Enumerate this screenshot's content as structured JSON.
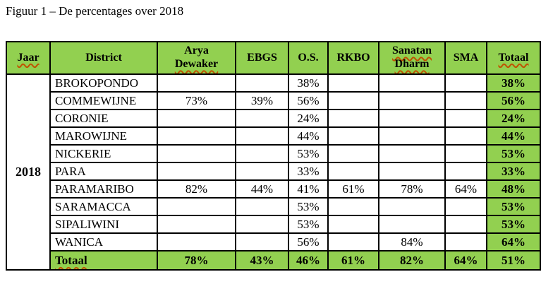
{
  "title": "Figuur 1 – De percentages over 2018",
  "colors": {
    "header_green": "#92d050",
    "grid_border": "#000000",
    "squiggle": "#bf5300",
    "text": "#000000",
    "background": "#ffffff"
  },
  "table": {
    "header": [
      {
        "lines": [
          {
            "text": "Jaar",
            "squiggle": true
          }
        ]
      },
      {
        "lines": [
          {
            "text": "District",
            "squiggle": false
          }
        ]
      },
      {
        "lines": [
          {
            "text": "Arya",
            "squiggle": false
          },
          {
            "text": "Dewaker",
            "squiggle": true
          }
        ]
      },
      {
        "lines": [
          {
            "text": "EBGS",
            "squiggle": false
          }
        ]
      },
      {
        "lines": [
          {
            "text": "O.S.",
            "squiggle": false
          }
        ]
      },
      {
        "lines": [
          {
            "text": "RKBO",
            "squiggle": false
          }
        ]
      },
      {
        "lines": [
          {
            "text": "Sanatan",
            "squiggle": true
          },
          {
            "text": "Dharm",
            "squiggle": true
          }
        ]
      },
      {
        "lines": [
          {
            "text": "SMA",
            "squiggle": false
          }
        ]
      },
      {
        "lines": [
          {
            "text": "Totaal",
            "squiggle": true
          }
        ]
      }
    ],
    "year_label": "2018",
    "rows": [
      {
        "name": "BROKOPONDO",
        "values": [
          "",
          "",
          "38%",
          "",
          "",
          "",
          "38%"
        ]
      },
      {
        "name": "COMMEWIJNE",
        "values": [
          "73%",
          "39%",
          "56%",
          "",
          "",
          "",
          "56%"
        ]
      },
      {
        "name": "CORONIE",
        "values": [
          "",
          "",
          "24%",
          "",
          "",
          "",
          "24%"
        ]
      },
      {
        "name": "MAROWIJNE",
        "values": [
          "",
          "",
          "44%",
          "",
          "",
          "",
          "44%"
        ]
      },
      {
        "name": "NICKERIE",
        "values": [
          "",
          "",
          "53%",
          "",
          "",
          "",
          "53%"
        ]
      },
      {
        "name": "PARA",
        "values": [
          "",
          "",
          "33%",
          "",
          "",
          "",
          "33%"
        ]
      },
      {
        "name": "PARAMARIBO",
        "values": [
          "82%",
          "44%",
          "41%",
          "61%",
          "78%",
          "64%",
          "48%"
        ]
      },
      {
        "name": "SARAMACCA",
        "values": [
          "",
          "",
          "53%",
          "",
          "",
          "",
          "53%"
        ]
      },
      {
        "name": "SIPALIWINI",
        "values": [
          "",
          "",
          "53%",
          "",
          "",
          "",
          "53%"
        ]
      },
      {
        "name": "WANICA",
        "values": [
          "",
          "",
          "56%",
          "",
          "84%",
          "",
          "64%"
        ]
      }
    ],
    "total_row": {
      "label": "Totaal",
      "values": [
        "78%",
        "43%",
        "46%",
        "61%",
        "82%",
        "64%",
        "51%"
      ]
    }
  }
}
